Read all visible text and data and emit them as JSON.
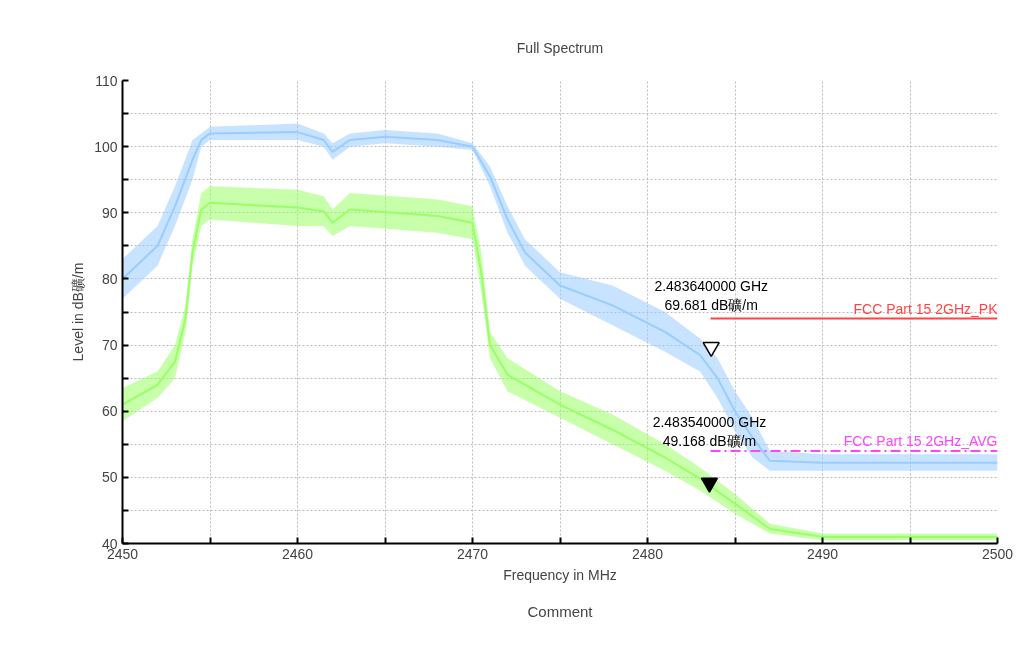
{
  "chart_data": {
    "type": "line",
    "title": "Full Spectrum",
    "xlabel": "Frequency in MHz",
    "ylabel": "Level in dB礦/m",
    "xlim": [
      2450,
      2500
    ],
    "ylim": [
      40,
      110
    ],
    "xticks": [
      2450,
      {
        "value": 2455,
        "label": null
      },
      2460,
      {
        "value": 2465,
        "label": null
      },
      2470,
      {
        "value": 2475,
        "label": null
      },
      2480,
      {
        "value": 2485,
        "label": null
      },
      2490,
      {
        "value": 2495,
        "label": null
      },
      2500
    ],
    "yticks": [
      40,
      {
        "value": 45,
        "label": null
      },
      50,
      {
        "value": 55,
        "label": null
      },
      60,
      {
        "value": 65,
        "label": null
      },
      70,
      {
        "value": 75,
        "label": null
      },
      80,
      {
        "value": 85,
        "label": null
      },
      90,
      {
        "value": 95,
        "label": null
      },
      100,
      {
        "value": 105,
        "label": null
      },
      110
    ],
    "grid": true,
    "legend": false,
    "series": [
      {
        "color": "#99ccff",
        "x": [
          2450,
          2452,
          2453,
          2454,
          2454.5,
          2455,
          2460,
          2461.5,
          2462,
          2463,
          2465,
          2468,
          2470,
          2471,
          2472,
          2473,
          2475,
          2478,
          2481,
          2483,
          2484,
          2485,
          2486,
          2487,
          2490,
          2500
        ],
        "values": [
          80,
          85,
          91,
          98,
          101,
          102,
          102.2,
          101,
          99.2,
          101,
          101.5,
          101,
          100,
          95.5,
          89,
          84,
          79,
          76,
          72,
          68.5,
          65,
          60,
          56,
          52.5,
          52.2,
          52.2
        ],
        "lower": [
          77,
          82,
          88,
          95,
          100,
          101,
          101,
          100,
          98,
          100,
          100.5,
          100,
          99.5,
          94,
          87,
          82,
          77,
          73,
          69,
          66,
          62,
          57,
          53,
          51,
          51,
          51
        ],
        "upper": [
          83,
          88,
          94,
          101,
          102,
          103,
          103.5,
          102,
          100.5,
          102,
          102.5,
          102,
          100.5,
          97,
          91,
          86,
          81,
          79,
          75,
          71,
          68,
          63,
          59,
          54,
          53.5,
          53.5
        ]
      },
      {
        "color": "#99ff66",
        "x": [
          2450,
          2452,
          2453,
          2453.6,
          2454,
          2454.5,
          2455,
          2460,
          2461.5,
          2462,
          2463,
          2468,
          2470,
          2470.5,
          2471,
          2472,
          2475,
          2478,
          2481,
          2483,
          2485,
          2487,
          2490,
          2500
        ],
        "values": [
          61,
          64,
          67.5,
          74,
          84,
          90.5,
          91.5,
          90.8,
          90.2,
          88.5,
          90.5,
          89.5,
          88.5,
          81,
          70,
          65.5,
          61,
          57.2,
          53,
          49.8,
          46,
          42.2,
          41,
          41
        ],
        "lower": [
          58.5,
          62,
          65,
          72,
          82,
          88,
          89,
          88,
          88,
          86.5,
          88,
          87,
          86,
          78,
          68,
          63,
          59,
          55,
          51,
          48,
          44.5,
          41.5,
          40.5,
          40.5
        ],
        "upper": [
          63.5,
          66,
          70,
          76,
          86,
          93,
          94,
          93.5,
          92.5,
          90.5,
          93,
          92,
          91,
          84,
          72,
          68,
          63,
          59.5,
          55,
          51.5,
          47.5,
          43,
          41.5,
          41.5
        ]
      },
      {
        "type": "scatter",
        "marker": "triangle",
        "color": "#ffffff",
        "x": [
          2483.64
        ],
        "values": [
          69.681
        ]
      },
      {
        "type": "scatter",
        "marker": "triangle",
        "color": "#000000",
        "x": [
          2483.54
        ],
        "values": [
          49.168
        ]
      },
      {
        "name": "FCC Part 15 2GHz_PK",
        "color": "#ff4444",
        "x": [
          2483.6,
          2500
        ],
        "values": [
          74,
          74
        ],
        "line_style": "solid"
      },
      {
        "name": "FCC Part 15 2GHz_AVG",
        "color": "#ff44ff",
        "x": [
          2483.6,
          2500
        ],
        "values": [
          54,
          54
        ],
        "line_style": "dashed"
      }
    ],
    "annotations": [
      {
        "text": "2.483640000 GHz\n69.681 dB礦/m",
        "x": 2483.64,
        "y": 69.681
      },
      {
        "text": "2.483540000 GHz\n49.168 dB礦/m",
        "x": 2483.54,
        "y": 49.168
      },
      "Comment"
    ]
  }
}
